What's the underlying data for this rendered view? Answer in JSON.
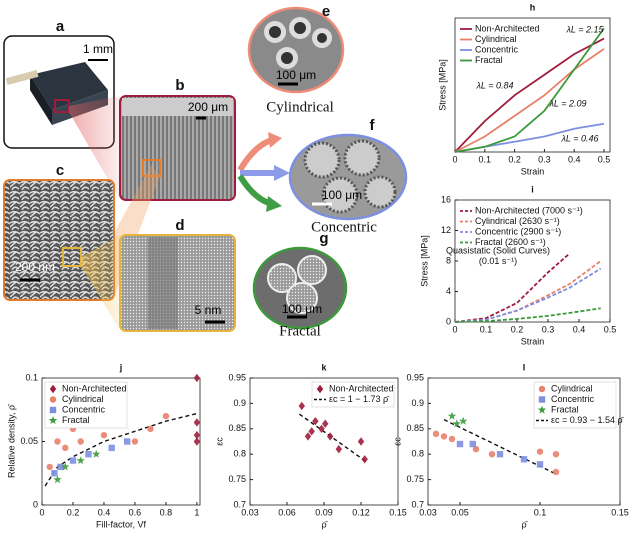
{
  "panels": {
    "a": {
      "label": "a",
      "scale_bar": "1 mm"
    },
    "b": {
      "label": "b",
      "scale_bar": "200 μm"
    },
    "c": {
      "label": "c",
      "scale_bar": "200 nm"
    },
    "d": {
      "label": "d",
      "scale_bar": "5 nm"
    },
    "e": {
      "label": "e",
      "scale_bar": "100 μm",
      "caption": "Cylindrical"
    },
    "f": {
      "label": "f",
      "scale_bar": "100 μm",
      "caption": "Concentric"
    },
    "g": {
      "label": "g",
      "scale_bar": "100 μm",
      "caption": "Fractal"
    }
  },
  "chart_data": [
    {
      "type": "line",
      "panel": "h",
      "xlabel": "Strain",
      "ylabel": "Stress [MPa]",
      "x": [
        0,
        0.1,
        0.2,
        0.3,
        0.4,
        0.5
      ],
      "xlim": [
        0,
        0.52
      ],
      "xticks": [
        0,
        0.1,
        0.2,
        0.3,
        0.4,
        0.5
      ],
      "ylim": [
        0,
        2.6
      ],
      "legend": "upper left",
      "dashed": false,
      "series": [
        {
          "name": "Non-Architected",
          "color": "#a01c3c",
          "values": [
            0,
            0.6,
            1.1,
            1.5,
            1.9,
            2.2
          ]
        },
        {
          "name": "Cylindrical",
          "color": "#e8806a",
          "values": [
            0,
            0.3,
            0.7,
            1.1,
            1.6,
            2.0
          ]
        },
        {
          "name": "Concentric",
          "color": "#7d8fe0",
          "values": [
            0,
            0.1,
            0.2,
            0.3,
            0.45,
            0.55
          ]
        },
        {
          "name": "Fractal",
          "color": "#3a9a3a",
          "values": [
            0,
            0.1,
            0.3,
            0.8,
            1.6,
            2.4
          ]
        }
      ],
      "annotations": [
        "λL = 2.15",
        "λL = 0.84",
        "λL = 2.09",
        "λL = 0.46"
      ]
    },
    {
      "type": "line",
      "panel": "i",
      "xlabel": "Strain",
      "ylabel": "Stress [MPa]",
      "x": [
        0,
        0.1,
        0.2,
        0.3,
        0.37,
        0.47
      ],
      "xlim": [
        0,
        0.5
      ],
      "xticks": [
        0,
        0.1,
        0.2,
        0.3,
        0.4,
        0.5
      ],
      "ylim": [
        0,
        16
      ],
      "yticks": [
        0,
        4,
        8,
        12,
        16
      ],
      "legend": "upper left",
      "dashed": true,
      "series": [
        {
          "name": "Non-Architected (7000 s⁻¹)",
          "color": "#a01c3c",
          "values": [
            0,
            0.5,
            2.5,
            6.5,
            9,
            null
          ]
        },
        {
          "name": "Cylindrical (2630 s⁻¹)",
          "color": "#e8806a",
          "values": [
            0,
            0.3,
            1.5,
            3.5,
            5,
            8
          ]
        },
        {
          "name": "Concentric (2900 s⁻¹)",
          "color": "#7d8fe0",
          "values": [
            0,
            0.3,
            1.5,
            3.2,
            4.5,
            7
          ]
        },
        {
          "name": "Fractal (2600 s⁻¹)",
          "color": "#3a9a3a",
          "values": [
            0,
            0.1,
            0.4,
            0.8,
            1.2,
            1.8
          ]
        }
      ],
      "note": [
        "Quasistatic (Solid Curves)",
        "(0.01 s⁻¹)"
      ]
    },
    {
      "type": "scatter",
      "panel": "j",
      "xlabel": "Fill-factor, Vf",
      "ylabel": "Relative density, ρ̄",
      "xlim": [
        0,
        1.02
      ],
      "xticks": [
        0,
        0.2,
        0.4,
        0.6,
        0.8,
        1
      ],
      "ylim": [
        0,
        0.1
      ],
      "yticks": [
        0,
        0.05,
        0.1
      ],
      "legend": "upper left",
      "series": [
        {
          "name": "Non-Architected",
          "color": "#a01c3c",
          "marker": "diamond",
          "x": [
            1,
            1,
            1,
            1
          ],
          "values": [
            0.1,
            0.065,
            0.055,
            0.05
          ]
        },
        {
          "name": "Cylindrical",
          "color": "#e8806a",
          "marker": "circle",
          "x": [
            0.05,
            0.1,
            0.15,
            0.2,
            0.25,
            0.3,
            0.4,
            0.5,
            0.6,
            0.7,
            0.8
          ],
          "values": [
            0.03,
            0.05,
            0.045,
            0.06,
            0.05,
            0.07,
            0.055,
            0.065,
            0.05,
            0.06,
            0.07
          ]
        },
        {
          "name": "Concentric",
          "color": "#7d8fe0",
          "marker": "square",
          "x": [
            0.08,
            0.12,
            0.2,
            0.3,
            0.45,
            0.55
          ],
          "values": [
            0.025,
            0.03,
            0.035,
            0.04,
            0.045,
            0.05
          ]
        },
        {
          "name": "Fractal",
          "color": "#3a9a3a",
          "marker": "star",
          "x": [
            0.1,
            0.15,
            0.25,
            0.35
          ],
          "values": [
            0.02,
            0.03,
            0.035,
            0.04
          ]
        }
      ],
      "fit": {
        "x": [
          0.02,
          0.1,
          0.2,
          0.4,
          0.6,
          0.8,
          1
        ],
        "values": [
          0.015,
          0.03,
          0.038,
          0.05,
          0.058,
          0.066,
          0.072
        ]
      }
    },
    {
      "type": "scatter",
      "panel": "k",
      "xlabel": "ρ̄",
      "ylabel": "εc",
      "xlim": [
        0.03,
        0.15
      ],
      "xticks": [
        0.03,
        0.06,
        0.09,
        0.12,
        0.15
      ],
      "ylim": [
        0.7,
        0.95
      ],
      "yticks": [
        0.7,
        0.75,
        0.8,
        0.85,
        0.9,
        0.95
      ],
      "legend": "upper right",
      "series": [
        {
          "name": "Non-Architected",
          "color": "#a01c3c",
          "marker": "diamond",
          "x": [
            0.072,
            0.077,
            0.08,
            0.083,
            0.088,
            0.091,
            0.095,
            0.102,
            0.12,
            0.123
          ],
          "values": [
            0.895,
            0.835,
            0.845,
            0.865,
            0.85,
            0.86,
            0.835,
            0.81,
            0.825,
            0.79
          ]
        }
      ],
      "fit": {
        "label": "εc = 1 − 1.73 ρ̄",
        "x": [
          0.07,
          0.125
        ],
        "values": [
          0.879,
          0.784
        ]
      }
    },
    {
      "type": "scatter",
      "panel": "l",
      "xlabel": "ρ̄",
      "ylabel": "εc",
      "xlim": [
        0.03,
        0.15
      ],
      "xticks": [
        0.03,
        0.05,
        0.1,
        0.15
      ],
      "ylim": [
        0.7,
        0.95
      ],
      "yticks": [
        0.7,
        0.75,
        0.8,
        0.85,
        0.9,
        0.95
      ],
      "legend": "upper right",
      "series": [
        {
          "name": "Cylindrical",
          "color": "#e8806a",
          "marker": "circle",
          "x": [
            0.035,
            0.04,
            0.045,
            0.06,
            0.07,
            0.1,
            0.11,
            0.11
          ],
          "values": [
            0.84,
            0.835,
            0.83,
            0.81,
            0.8,
            0.805,
            0.765,
            0.8
          ]
        },
        {
          "name": "Concentric",
          "color": "#7d8fe0",
          "marker": "square",
          "x": [
            0.05,
            0.058,
            0.075,
            0.09,
            0.1
          ],
          "values": [
            0.82,
            0.82,
            0.8,
            0.79,
            0.78
          ]
        },
        {
          "name": "Fractal",
          "color": "#3a9a3a",
          "marker": "star",
          "x": [
            0.045,
            0.048,
            0.052
          ],
          "values": [
            0.875,
            0.86,
            0.865
          ]
        }
      ],
      "fit": {
        "label": "εc = 0.93 − 1.54 ρ̄",
        "x": [
          0.04,
          0.11
        ],
        "values": [
          0.868,
          0.761
        ]
      }
    }
  ]
}
